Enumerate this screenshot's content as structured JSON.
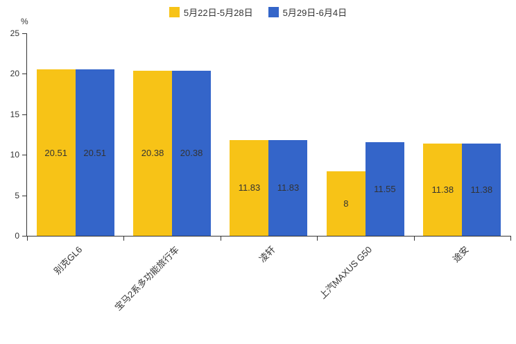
{
  "chart_data": {
    "type": "bar",
    "title": "",
    "xlabel": "",
    "ylabel": "%",
    "ylim": [
      0,
      25
    ],
    "yticks": [
      0,
      5,
      10,
      15,
      20,
      25
    ],
    "grid": false,
    "legend_position": "top",
    "categories": [
      "别克GL6",
      "宝马2系多功能旅行车",
      "凌轩",
      "上汽MAXUS G50",
      "途安"
    ],
    "series": [
      {
        "name": "5月22日-5月28日",
        "color": "#F7C317",
        "values": [
          20.51,
          20.38,
          11.83,
          8,
          11.38
        ]
      },
      {
        "name": "5月29日-6月4日",
        "color": "#3465C9",
        "values": [
          20.51,
          20.38,
          11.83,
          11.55,
          11.38
        ]
      }
    ]
  }
}
